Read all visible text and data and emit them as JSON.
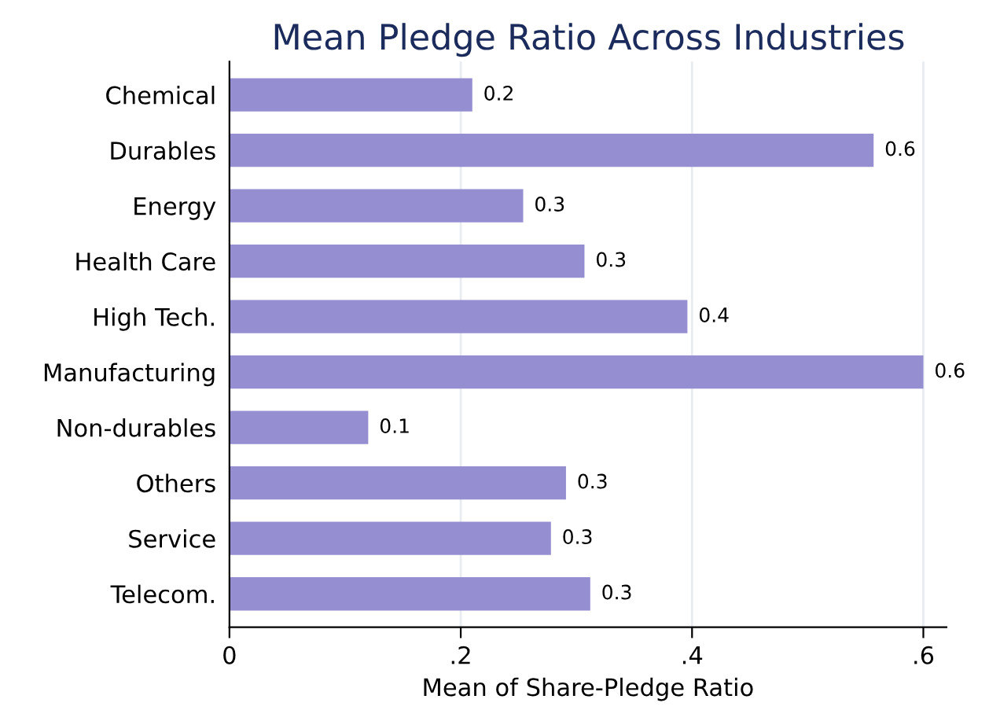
{
  "chart_data": {
    "type": "bar",
    "orientation": "horizontal",
    "title": "Mean Pledge Ratio Across Industries",
    "xlabel": "Mean of Share-Pledge Ratio",
    "categories": [
      "Chemical",
      "Durables",
      "Energy",
      "Health Care",
      "High Tech.",
      "Manufacturing",
      "Non-durables",
      "Others",
      "Service",
      "Telecom."
    ],
    "values": [
      0.21,
      0.557,
      0.254,
      0.307,
      0.396,
      0.6,
      0.12,
      0.291,
      0.278,
      0.312
    ],
    "value_labels": [
      "0.2",
      "0.6",
      "0.3",
      "0.3",
      "0.4",
      "0.6",
      "0.1",
      "0.3",
      "0.3",
      "0.3"
    ],
    "color": "#958fd2",
    "xlim": [
      0,
      0.62
    ],
    "xticks": [
      0,
      {
        "value": 0.2,
        "label": ".2"
      },
      {
        "value": 0.4,
        "label": ".4"
      },
      {
        "value": 0.6,
        "label": ".6"
      }
    ],
    "grid": "x"
  }
}
